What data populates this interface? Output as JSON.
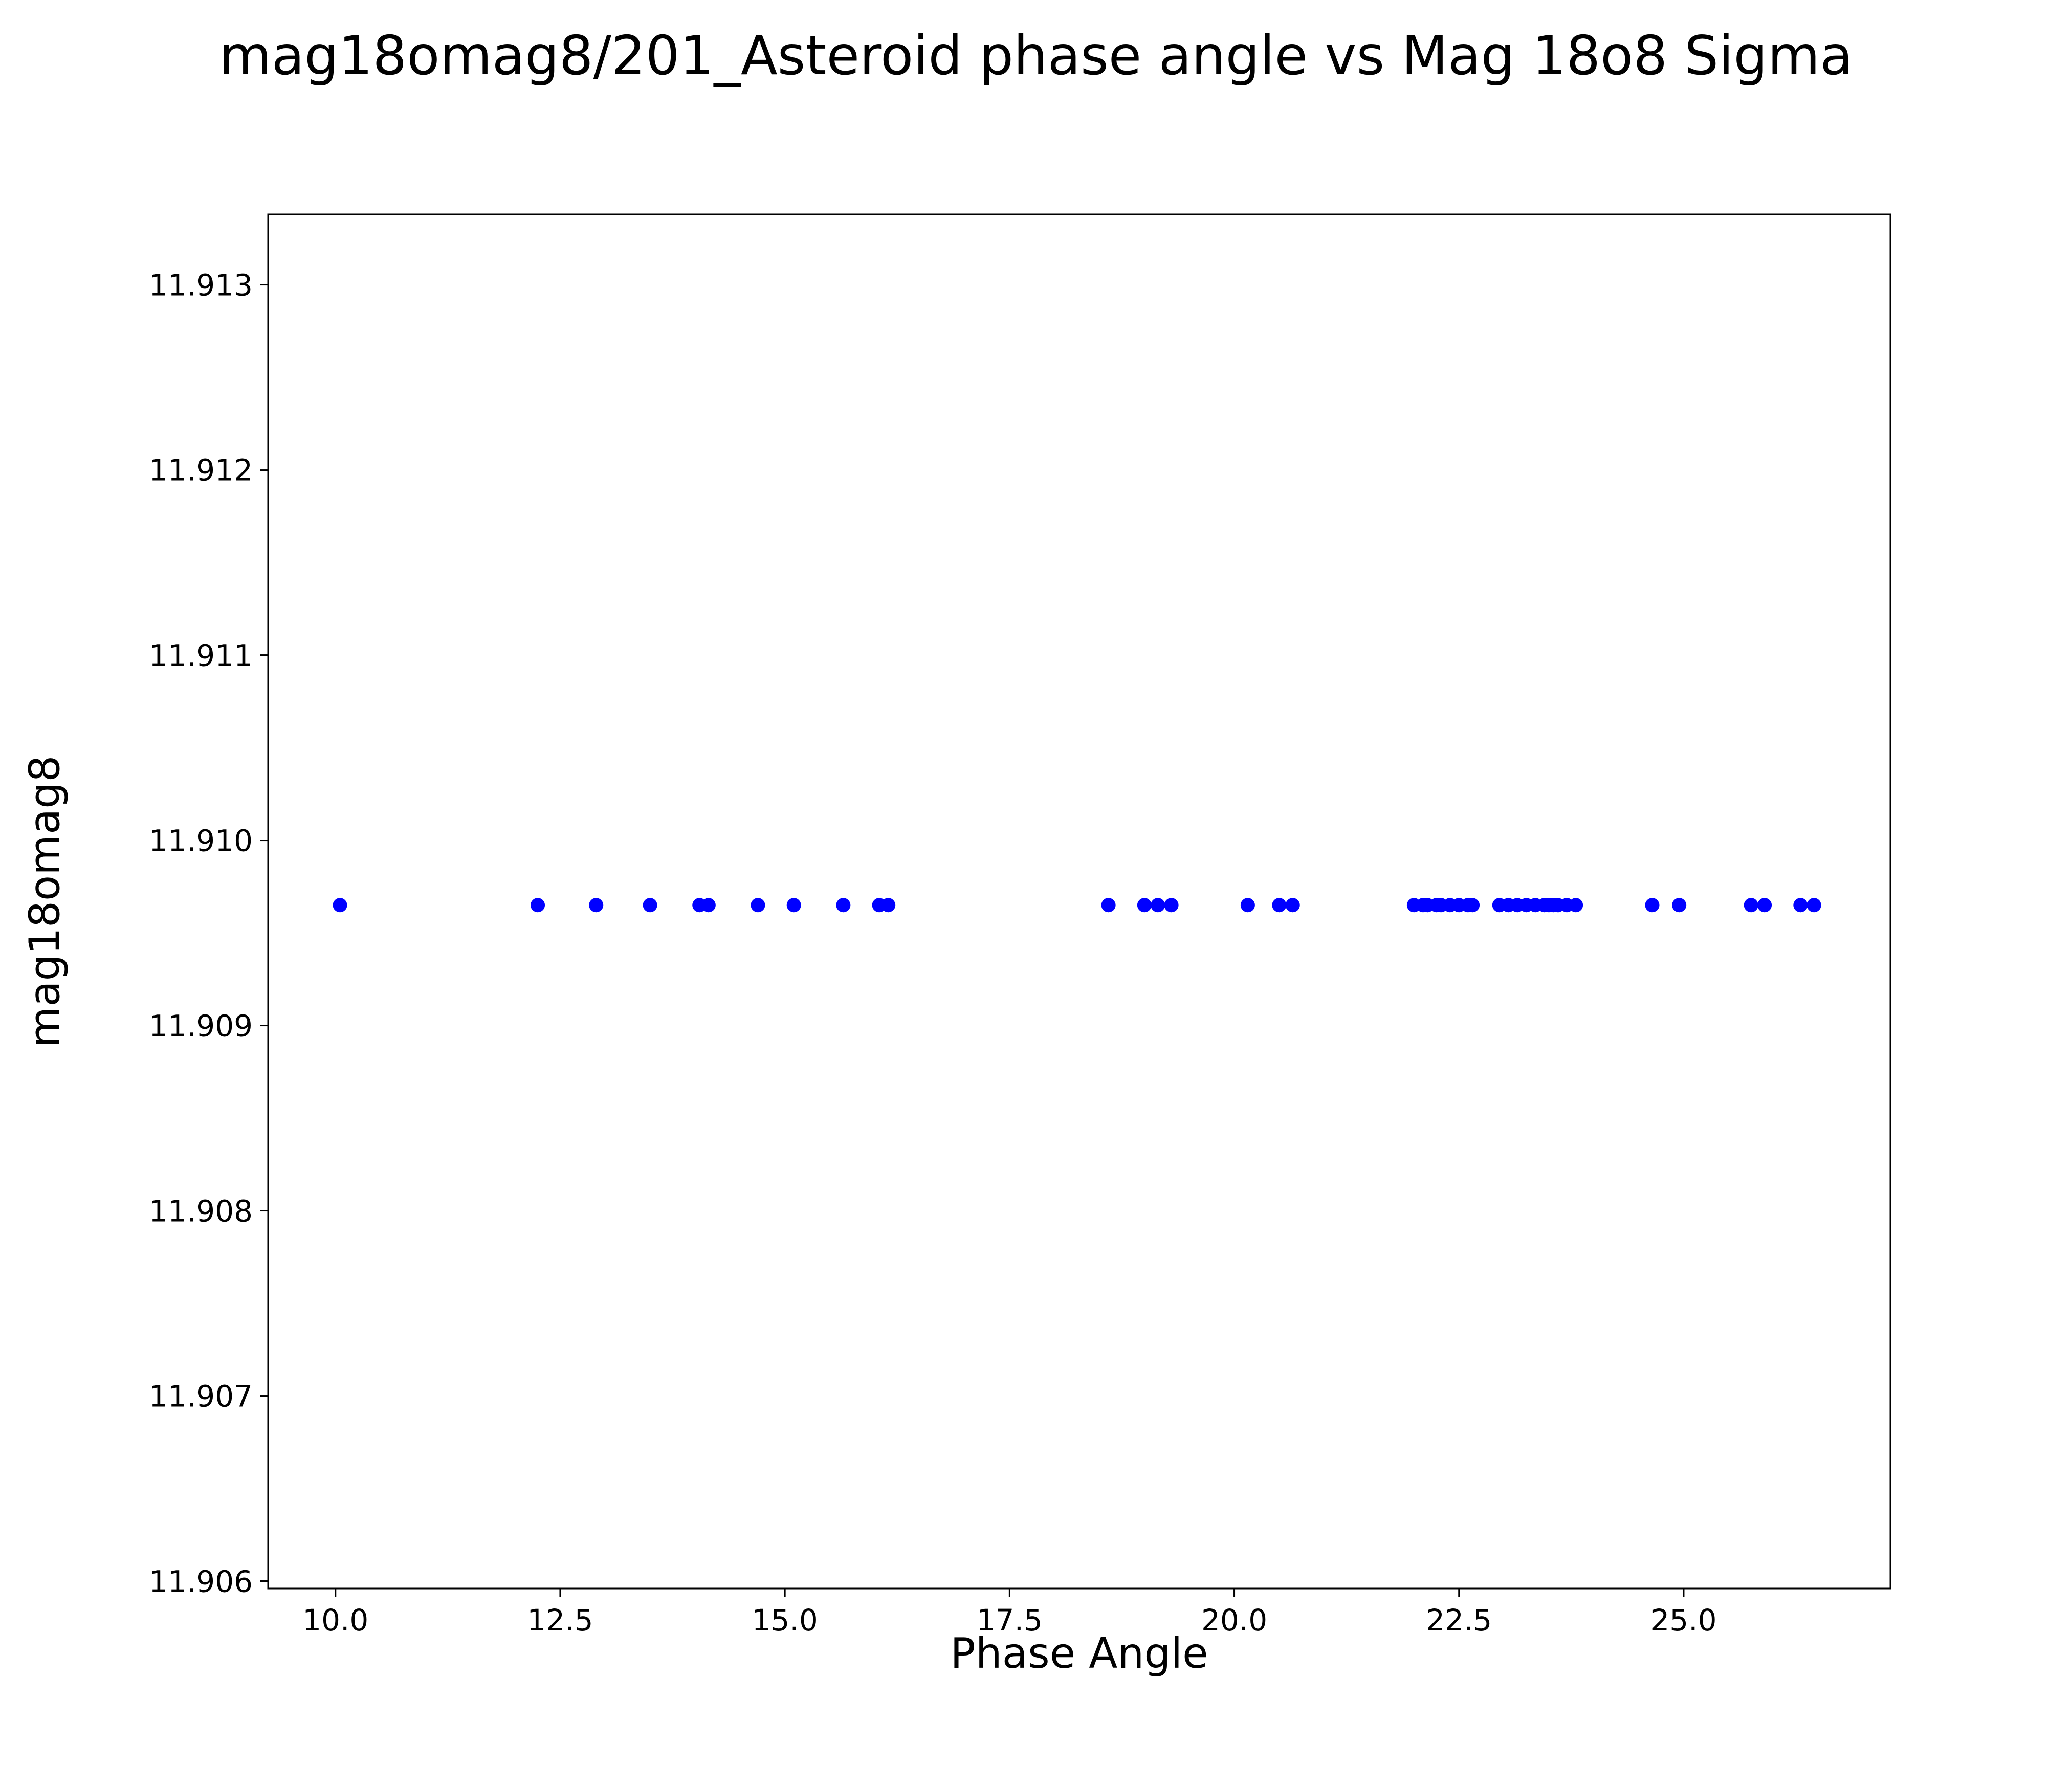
{
  "figure": {
    "background_color": "#ffffff",
    "axes_edge_color": "#000000",
    "tick_label_color": "#000000"
  },
  "chart_data": {
    "type": "scatter",
    "title": "mag18omag8/201_Asteroid phase angle vs Mag 18o8 Sigma",
    "xlabel": "Phase Angle",
    "ylabel": "mag18omag8",
    "xlim": [
      9.25,
      27.3
    ],
    "ylim": [
      11.90596,
      11.91338
    ],
    "xticks": [
      10.0,
      12.5,
      15.0,
      17.5,
      20.0,
      22.5,
      25.0
    ],
    "xtick_labels": [
      "10.0",
      "12.5",
      "15.0",
      "17.5",
      "20.0",
      "22.5",
      "25.0"
    ],
    "yticks": [
      11.906,
      11.907,
      11.908,
      11.909,
      11.91,
      11.911,
      11.912,
      11.913
    ],
    "ytick_labels": [
      "11.906",
      "11.907",
      "11.908",
      "11.909",
      "11.910",
      "11.911",
      "11.912",
      "11.913"
    ],
    "grid": false,
    "legend_position": "none",
    "marker_color": "#0000ff",
    "series": [
      {
        "name": "mag18omag8",
        "y_constant": 11.90965,
        "x": [
          10.05,
          12.25,
          12.9,
          13.5,
          14.05,
          14.15,
          14.7,
          15.1,
          15.65,
          16.05,
          16.15,
          18.6,
          19.0,
          19.15,
          19.3,
          20.15,
          20.5,
          20.65,
          22.0,
          22.1,
          22.15,
          22.25,
          22.3,
          22.4,
          22.5,
          22.6,
          22.65,
          22.95,
          23.05,
          23.15,
          23.25,
          23.35,
          23.45,
          23.5,
          23.55,
          23.6,
          23.7,
          23.8,
          24.65,
          24.95,
          25.75,
          25.9,
          26.3,
          26.45
        ]
      }
    ]
  }
}
